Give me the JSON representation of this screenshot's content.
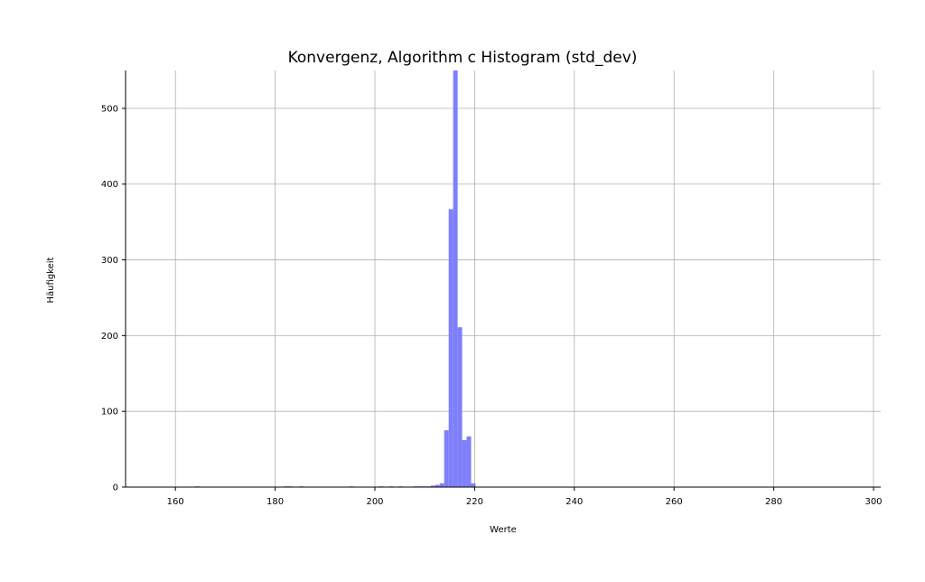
{
  "chart_data": {
    "type": "bar",
    "title": "Konvergenz, Algorithm c Histogram (std_dev)",
    "xlabel": "Werte",
    "ylabel": "Häufigkeit",
    "xlim": [
      150,
      300
    ],
    "ylim": [
      0,
      550
    ],
    "xticks": [
      160,
      180,
      200,
      220,
      240,
      260,
      280,
      300
    ],
    "yticks": [
      0,
      100,
      200,
      300,
      400,
      500
    ],
    "grid": true,
    "bar_color": "#7f7ffb",
    "bins": [
      {
        "x0": 163.9,
        "x1": 164.8,
        "count": 1
      },
      {
        "x0": 181.7,
        "x1": 182.6,
        "count": 1
      },
      {
        "x0": 182.6,
        "x1": 183.5,
        "count": 1
      },
      {
        "x0": 184.8,
        "x1": 185.7,
        "count": 1
      },
      {
        "x0": 194.8,
        "x1": 195.7,
        "count": 1
      },
      {
        "x0": 200.8,
        "x1": 201.7,
        "count": 1
      },
      {
        "x0": 202.8,
        "x1": 203.7,
        "count": 1
      },
      {
        "x0": 204.8,
        "x1": 205.7,
        "count": 1
      },
      {
        "x0": 207.6,
        "x1": 208.5,
        "count": 1
      },
      {
        "x0": 208.5,
        "x1": 209.4,
        "count": 1
      },
      {
        "x0": 209.4,
        "x1": 210.3,
        "count": 1
      },
      {
        "x0": 210.3,
        "x1": 211.2,
        "count": 1
      },
      {
        "x0": 211.2,
        "x1": 212.1,
        "count": 2
      },
      {
        "x0": 212.1,
        "x1": 213.0,
        "count": 3
      },
      {
        "x0": 213.0,
        "x1": 213.9,
        "count": 5
      },
      {
        "x0": 213.9,
        "x1": 214.8,
        "count": 75
      },
      {
        "x0": 214.8,
        "x1": 215.7,
        "count": 367
      },
      {
        "x0": 215.7,
        "x1": 216.6,
        "count": 550
      },
      {
        "x0": 216.6,
        "x1": 217.5,
        "count": 211
      },
      {
        "x0": 217.5,
        "x1": 218.4,
        "count": 62
      },
      {
        "x0": 218.4,
        "x1": 219.3,
        "count": 67
      },
      {
        "x0": 219.3,
        "x1": 220.2,
        "count": 5
      }
    ]
  }
}
